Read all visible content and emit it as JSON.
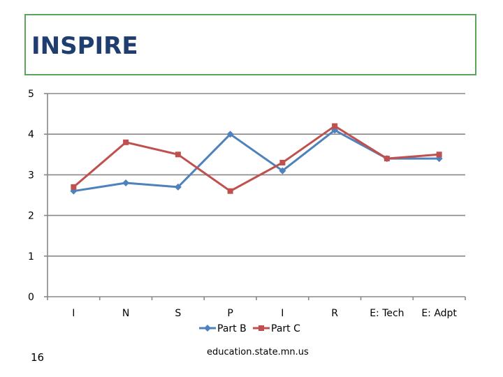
{
  "slide": {
    "title": "INSPIRE",
    "number": "16",
    "footer": "education.state.mn.us"
  },
  "chart_data": {
    "type": "line",
    "title": "",
    "xlabel": "",
    "ylabel": "",
    "categories": [
      "I",
      "N",
      "S",
      "P",
      "I",
      "R",
      "E: Tech",
      "E: Adpt"
    ],
    "ylim": [
      0,
      5
    ],
    "yticks": [
      0,
      1,
      2,
      3,
      4,
      5
    ],
    "grid": true,
    "legend": "bottom",
    "series": [
      {
        "name": "Part B",
        "marker": "diamond",
        "color": "#4f81bd",
        "values": [
          2.6,
          2.8,
          2.7,
          4.0,
          3.1,
          4.1,
          3.4,
          3.4
        ]
      },
      {
        "name": "Part C",
        "marker": "square",
        "color": "#c0504d",
        "values": [
          2.7,
          3.8,
          3.5,
          2.6,
          3.3,
          4.2,
          3.4,
          3.5
        ]
      }
    ]
  }
}
